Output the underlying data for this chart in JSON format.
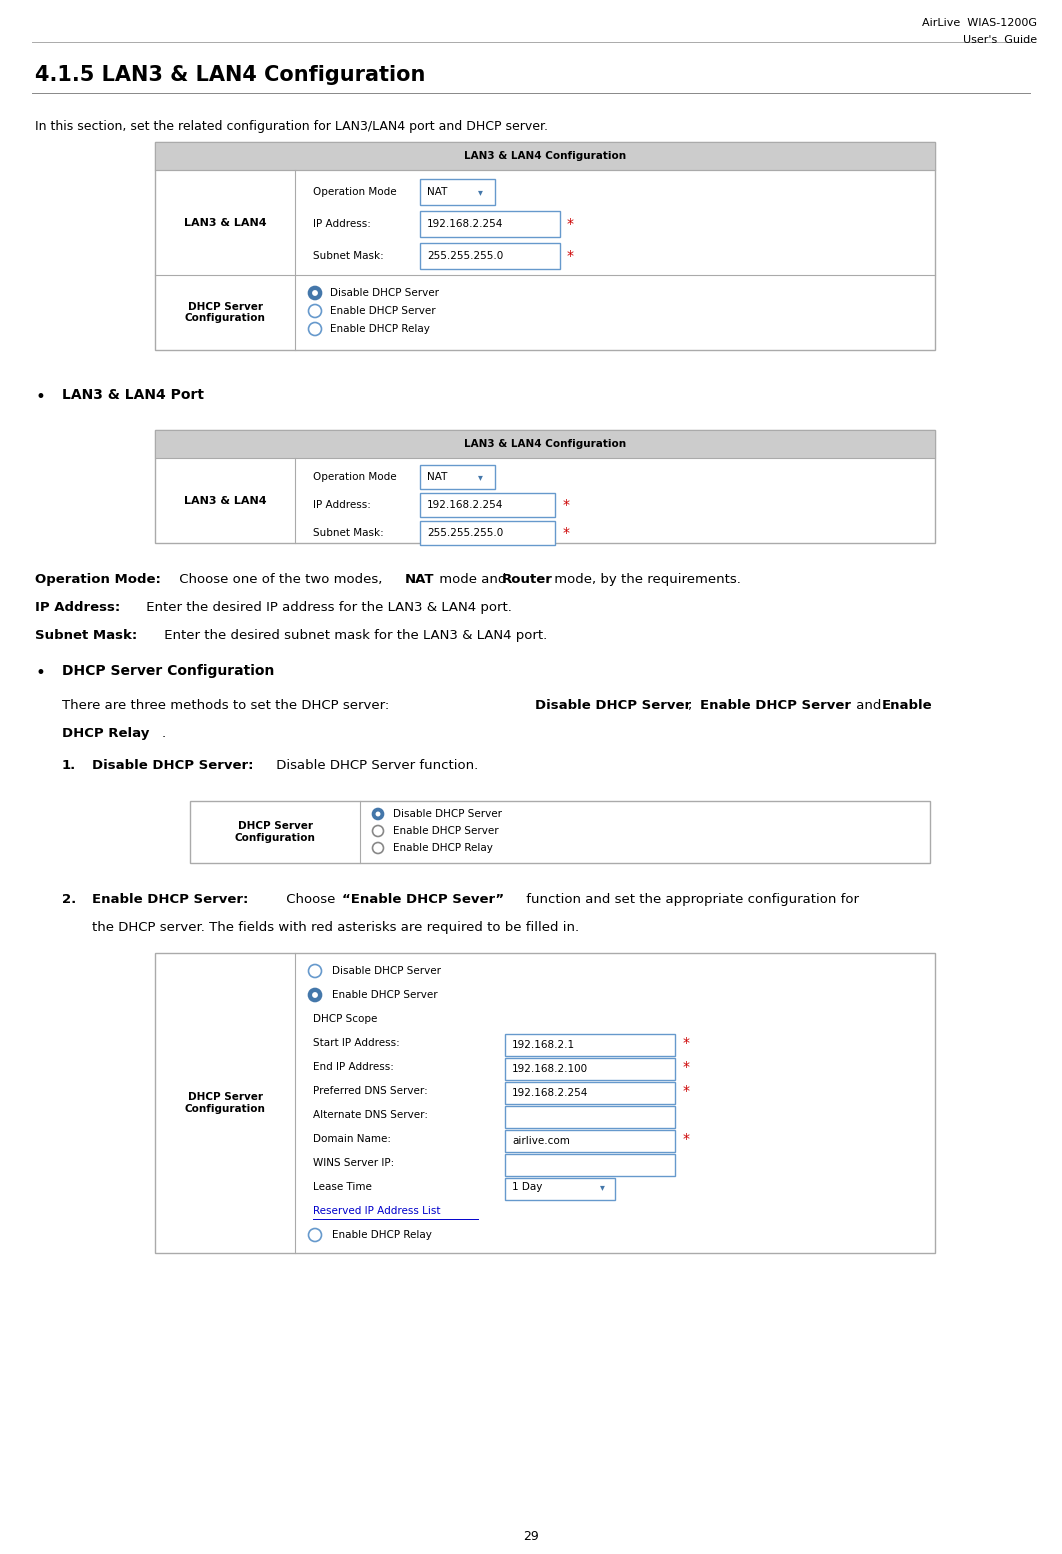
{
  "page_width": 10.62,
  "page_height": 15.54,
  "bg_color": "#ffffff",
  "header_text1": "AirLive  WIAS-1200G",
  "header_text2": "User's  Guide",
  "title": "4.1.5 LAN3 & LAN4 Configuration",
  "intro": "In this section, set the related configuration for LAN3/LAN4 port and DHCP server.",
  "table1_title": "LAN3 & LAN4 Configuration",
  "bullet1": "LAN3 & LAN4 Port",
  "table2_title": "LAN3 & LAN4 Configuration",
  "op_mode_label": "Operation Mode",
  "nat_text": "NAT",
  "ip_label": "IP Address:",
  "ip_value": "192.168.2.254",
  "mask_label": "Subnet Mask:",
  "mask_value": "255.255.255.0",
  "lan_label": "LAN3 & LAN4",
  "dhcp_label": "DHCP Server\nConfiguration",
  "disable_dhcp": "Disable DHCP Server",
  "enable_dhcp": "Enable DHCP Server",
  "enable_relay": "Enable DHCP Relay",
  "bullet2": "DHCP Server Configuration",
  "item1_title": "Disable DHCP Server:",
  "item1_desc": "Disable DHCP Server function.",
  "item2_title": "Enable DHCP Server:",
  "item2_desc1": "Choose “Enable DHCP Sever” function and set the appropriate configuration for",
  "item2_desc2": "the DHCP server. The fields with red asterisks are required to be filled in.",
  "page_num": "29",
  "table_border_color": "#aaaaaa",
  "table_header_bg": "#cccccc",
  "table_bg": "#ffffff",
  "input_bg": "#ffffff",
  "input_border": "#6699cc",
  "red_color": "#cc0000",
  "blue_color": "#4477aa",
  "text_color": "#000000",
  "gray_text": "#666666"
}
